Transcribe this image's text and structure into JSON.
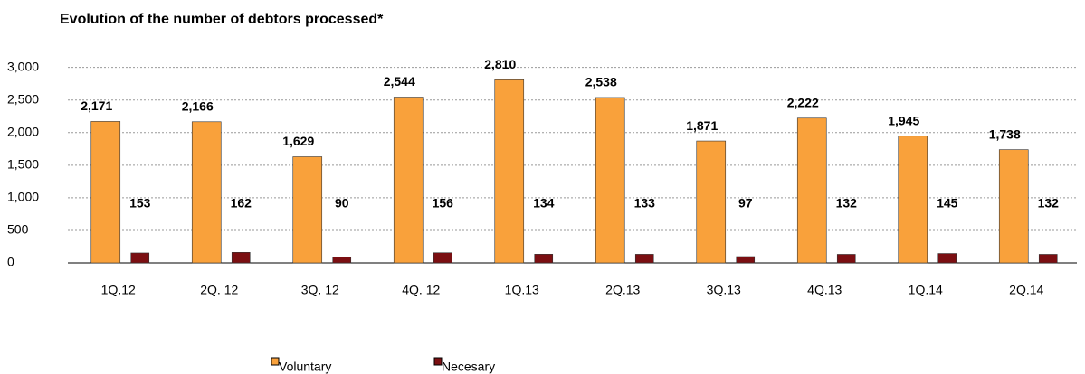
{
  "chart_data": {
    "type": "bar",
    "title": "Evolution of the number of debtors processed*",
    "categories": [
      "1Q.12",
      "2Q. 12",
      "3Q. 12",
      "4Q. 12",
      "1Q.13",
      "2Q.13",
      "3Q.13",
      "4Q.13",
      "1Q.14",
      "2Q.14"
    ],
    "series": [
      {
        "name": "Voluntary",
        "color": "#f9a13b",
        "values": [
          2171,
          2166,
          1629,
          2544,
          2810,
          2538,
          1871,
          2222,
          1945,
          1738
        ],
        "value_labels": [
          "2,171",
          "2,166",
          "1,629",
          "2,544",
          "2,810",
          "2,538",
          "1,871",
          "2,222",
          "1,945",
          "1,738"
        ]
      },
      {
        "name": "Necesary",
        "color": "#7b0f12",
        "values": [
          153,
          162,
          90,
          156,
          134,
          133,
          97,
          132,
          145,
          132
        ]
      }
    ],
    "ylim": [
      0,
      3300
    ],
    "yticks": [
      0,
      500,
      {
        "value": 1000,
        "label": "1,000"
      },
      {
        "value": 1500,
        "label": "1,500"
      },
      {
        "value": 2000,
        "label": "2,000"
      },
      {
        "value": 2500,
        "label": "2,500"
      },
      {
        "value": 3000,
        "label": "3,000"
      }
    ],
    "grid": true
  }
}
